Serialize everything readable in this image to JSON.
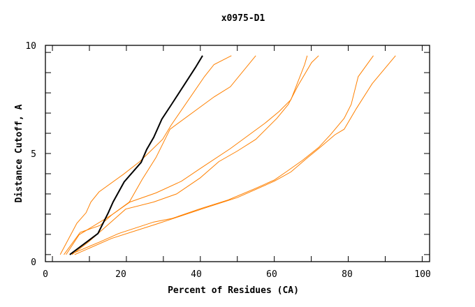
{
  "chart_data": {
    "type": "line",
    "title": "x0975-D1",
    "xlabel": "Percent of Residues (CA)",
    "ylabel": "Distance Cutoff, A",
    "xlim": [
      -1.9,
      102
    ],
    "ylim": [
      -0.35,
      10.35
    ],
    "xticks": [
      0,
      20,
      40,
      60,
      80,
      100
    ],
    "yticks": [
      0,
      5,
      10
    ],
    "grid": false,
    "colors": {
      "highlight": "#000000",
      "others": "#ff8000"
    },
    "series": [
      {
        "name": "orange-1",
        "color": "#ff8000",
        "points": [
          [
            2.1,
            0
          ],
          [
            6.6,
            1.55
          ],
          [
            9.1,
            2.07
          ],
          [
            10.4,
            2.6
          ],
          [
            12.6,
            3.1
          ],
          [
            19.2,
            3.97
          ],
          [
            23.6,
            4.6
          ],
          [
            29.8,
            5.7
          ],
          [
            32.1,
            6.4
          ],
          [
            41.1,
            8.8
          ],
          [
            43.7,
            9.4
          ],
          [
            48.4,
            9.84
          ]
        ]
      },
      {
        "name": "orange-2",
        "color": "#ff8000",
        "points": [
          [
            3.1,
            0
          ],
          [
            7.5,
            1.1
          ],
          [
            12.9,
            1.44
          ],
          [
            16,
            1.96
          ],
          [
            20.8,
            2.6
          ],
          [
            24.2,
            3.7
          ],
          [
            28,
            4.8
          ],
          [
            31.8,
            6.2
          ],
          [
            43.7,
            7.8
          ],
          [
            48.1,
            8.3
          ],
          [
            55,
            9.84
          ]
        ]
      },
      {
        "name": "orange-3",
        "color": "#ff8000",
        "points": [
          [
            3.7,
            0
          ],
          [
            7.2,
            0.98
          ],
          [
            16,
            1.96
          ],
          [
            21,
            2.6
          ],
          [
            28,
            3.05
          ],
          [
            34.9,
            3.63
          ],
          [
            40,
            4.26
          ],
          [
            48.1,
            5.24
          ],
          [
            57.5,
            6.5
          ],
          [
            61.3,
            7.08
          ],
          [
            64.5,
            7.66
          ],
          [
            68.2,
            9.4
          ],
          [
            68.9,
            9.84
          ]
        ]
      },
      {
        "name": "orange-4",
        "color": "#ff8000",
        "points": [
          [
            5.3,
            0
          ],
          [
            9.8,
            0.63
          ],
          [
            19.8,
            2.25
          ],
          [
            27.4,
            2.6
          ],
          [
            33.6,
            3.0
          ],
          [
            40,
            3.8
          ],
          [
            45,
            4.6
          ],
          [
            50,
            5.12
          ],
          [
            55,
            5.7
          ],
          [
            60.7,
            6.74
          ],
          [
            63.8,
            7.43
          ],
          [
            66.4,
            8.35
          ],
          [
            70.1,
            9.5
          ],
          [
            72,
            9.84
          ]
        ]
      },
      {
        "name": "orange-5",
        "color": "#ff8000",
        "points": [
          [
            4.7,
            0
          ],
          [
            12.9,
            0.63
          ],
          [
            17.9,
            1.04
          ],
          [
            27.4,
            1.61
          ],
          [
            32.4,
            1.79
          ],
          [
            40,
            2.27
          ],
          [
            47.5,
            2.7
          ],
          [
            55,
            3.28
          ],
          [
            60,
            3.69
          ],
          [
            63.2,
            4.09
          ],
          [
            67.6,
            4.66
          ],
          [
            72,
            5.3
          ],
          [
            75.2,
            5.93
          ],
          [
            78.9,
            6.74
          ],
          [
            80.8,
            7.43
          ],
          [
            82.7,
            8.8
          ],
          [
            86.8,
            9.84
          ]
        ]
      },
      {
        "name": "orange-6",
        "color": "#ff8000",
        "points": [
          [
            6,
            0
          ],
          [
            16,
            0.8
          ],
          [
            28,
            1.5
          ],
          [
            41.2,
            2.3
          ],
          [
            50,
            2.82
          ],
          [
            60,
            3.63
          ],
          [
            64.5,
            4.09
          ],
          [
            68.9,
            4.78
          ],
          [
            72,
            5.24
          ],
          [
            76.4,
            5.93
          ],
          [
            78.9,
            6.2
          ],
          [
            82.1,
            7.2
          ],
          [
            86.5,
            8.46
          ],
          [
            92.8,
            9.84
          ]
        ]
      },
      {
        "name": "black",
        "color": "#000000",
        "points": [
          [
            4.7,
            0
          ],
          [
            12.3,
            1.04
          ],
          [
            15.1,
            2.07
          ],
          [
            16.4,
            2.6
          ],
          [
            19.4,
            3.6
          ],
          [
            24,
            4.56
          ],
          [
            25.5,
            5.2
          ],
          [
            27.4,
            5.8
          ],
          [
            29.6,
            6.7
          ],
          [
            32.1,
            7.4
          ],
          [
            35.3,
            8.3
          ],
          [
            38.7,
            9.26
          ],
          [
            40.6,
            9.84
          ]
        ]
      }
    ]
  }
}
